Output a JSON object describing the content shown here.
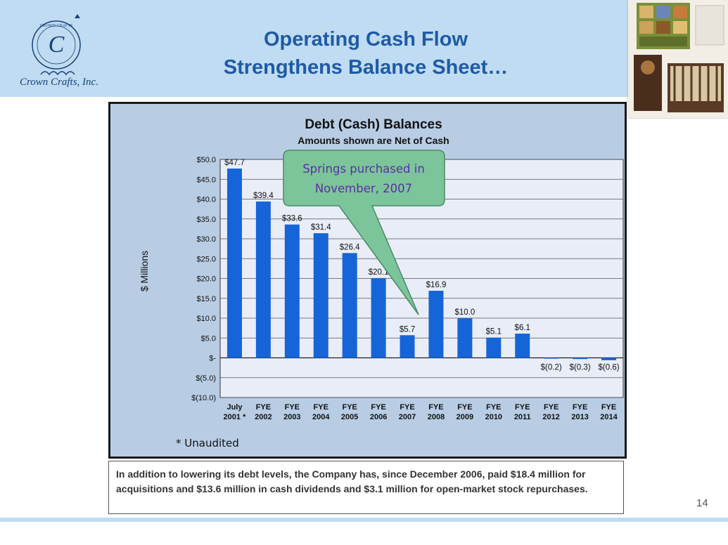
{
  "header": {
    "title_line1": "Operating Cash Flow",
    "title_line2": "Strengthens Balance Sheet…",
    "logo_text": "Crown Crafts, Inc.",
    "logo_ring_text": "CROWN CRAFTS"
  },
  "chart": {
    "title": "Debt (Cash) Balances",
    "subtitle": "Amounts shown are Net of Cash",
    "ylabel": "$ Millions",
    "callout_line1": "Springs purchased in",
    "callout_line2": "November, 2007",
    "footnote": "* Unaudited"
  },
  "chart_data": {
    "type": "bar",
    "title": "Debt (Cash) Balances",
    "subtitle": "Amounts shown are Net of Cash",
    "ylabel": "$ Millions",
    "xlabel": "",
    "ylim": [
      -10,
      50
    ],
    "yticks": [
      50,
      45,
      40,
      35,
      30,
      25,
      20,
      15,
      10,
      5,
      0,
      -5,
      -10
    ],
    "ytick_labels": [
      "$50.0",
      "$45.0",
      "$40.0",
      "$35.0",
      "$30.0",
      "$25.0",
      "$20.0",
      "$15.0",
      "$10.0",
      "$5.0",
      "$-",
      "$(5.0)",
      "$(10.0)"
    ],
    "grid": true,
    "bar_color": "#1565d8",
    "categories": [
      [
        "July",
        "2001 *"
      ],
      [
        "FYE",
        "2002"
      ],
      [
        "FYE",
        "2003"
      ],
      [
        "FYE",
        "2004"
      ],
      [
        "FYE",
        "2005"
      ],
      [
        "FYE",
        "2006"
      ],
      [
        "FYE",
        "2007"
      ],
      [
        "FYE",
        "2008"
      ],
      [
        "FYE",
        "2009"
      ],
      [
        "FYE",
        "2010"
      ],
      [
        "FYE",
        "2011"
      ],
      [
        "FYE",
        "2012"
      ],
      [
        "FYE",
        "2013"
      ],
      [
        "FYE",
        "2014"
      ]
    ],
    "values": [
      47.7,
      39.4,
      33.6,
      31.4,
      26.4,
      20.1,
      5.7,
      16.9,
      10.0,
      5.1,
      6.1,
      -0.2,
      -0.3,
      -0.6
    ],
    "data_labels": [
      "$47.7",
      "$39.4",
      "$33.6",
      "$31.4",
      "$26.4",
      "$20.1",
      "$5.7",
      "$16.9",
      "$10.0",
      "$5.1",
      "$6.1",
      "$(0.2)",
      "$(0.3)",
      "$(0.6)"
    ],
    "callout": "Springs purchased in November, 2007"
  },
  "note": {
    "text": "In addition to lowering its debt levels, the Company has, since December 2006, paid $18.4 million for acquisitions and $13.6 million in cash dividends and $3.1 million for open-market stock repurchases."
  },
  "page_number": "14",
  "colors": {
    "header_bg": "#bfdcf2",
    "title": "#1f5aa6",
    "chart_bg": "#b8cde4",
    "callout_fill": "#7cc49a",
    "callout_text": "#5b2fa6"
  }
}
